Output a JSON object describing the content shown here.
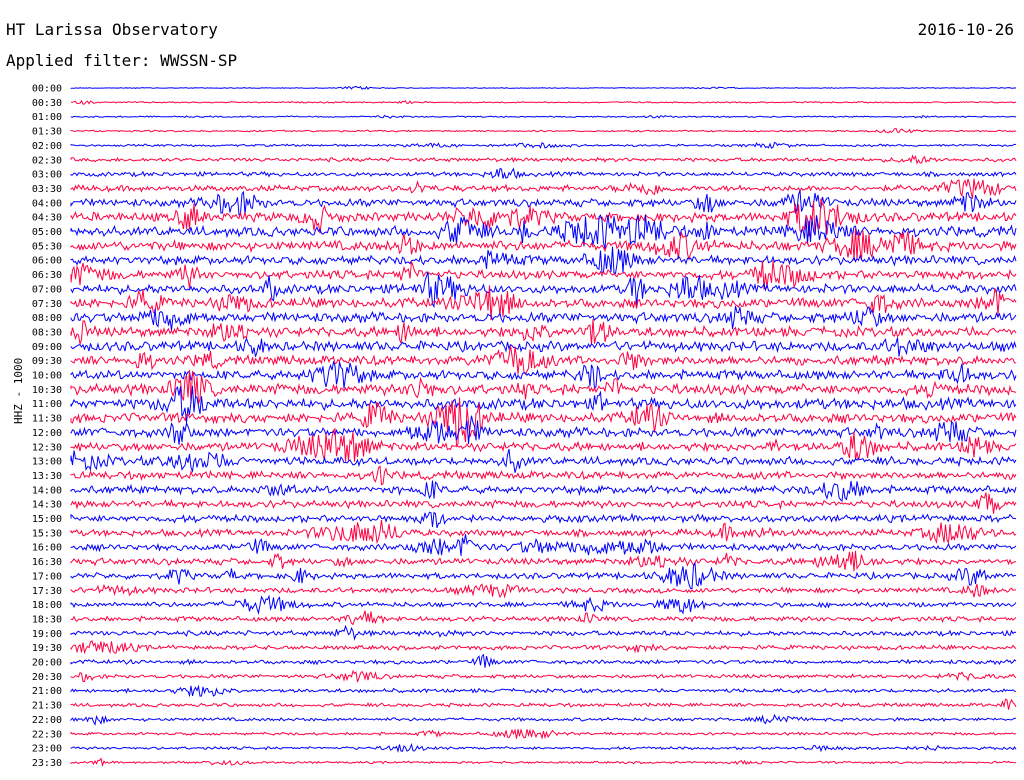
{
  "header": {
    "station": "HT Larissa Observatory",
    "date": "2016-10-26",
    "filter": "Applied filter: WWSSN-SP"
  },
  "chart_data": {
    "type": "line",
    "title": "HT Larissa Observatory",
    "date": "2016-10-26",
    "filter": "WWSSN-SP",
    "channel_label": "HHZ - 1000",
    "row_labels": [
      "00:00",
      "00:30",
      "01:00",
      "01:30",
      "02:00",
      "02:30",
      "03:00",
      "03:30",
      "04:00",
      "04:30",
      "05:00",
      "05:30",
      "06:00",
      "06:30",
      "07:00",
      "07:30",
      "08:00",
      "08:30",
      "09:00",
      "09:30",
      "10:00",
      "10:30",
      "11:00",
      "11:30",
      "12:00",
      "12:30",
      "13:00",
      "13:30",
      "14:00",
      "14:30",
      "15:00",
      "15:30",
      "16:00",
      "16:30",
      "17:00",
      "17:30",
      "18:00",
      "18:30",
      "19:00",
      "19:30",
      "20:00",
      "20:30",
      "21:00",
      "21:30",
      "22:00",
      "22:30",
      "23:00",
      "23:30"
    ],
    "row_noise_level": [
      0.3,
      0.5,
      0.5,
      0.6,
      0.8,
      1.4,
      1.6,
      2.2,
      2.8,
      3.4,
      3.6,
      3.6,
      3.2,
      3.2,
      3.4,
      3.6,
      3.6,
      3.6,
      3.6,
      3.4,
      3.4,
      3.8,
      4.0,
      3.6,
      3.4,
      3.2,
      3.0,
      2.8,
      2.8,
      2.6,
      2.6,
      2.4,
      2.4,
      2.4,
      2.2,
      2.0,
      1.8,
      1.8,
      1.8,
      1.6,
      1.5,
      1.4,
      1.4,
      1.3,
      1.2,
      1.0,
      1.0,
      0.8
    ],
    "colors": [
      "#0000ff",
      "#ff0040"
    ],
    "x_range": [
      0,
      30
    ],
    "x_unit": "minutes"
  }
}
